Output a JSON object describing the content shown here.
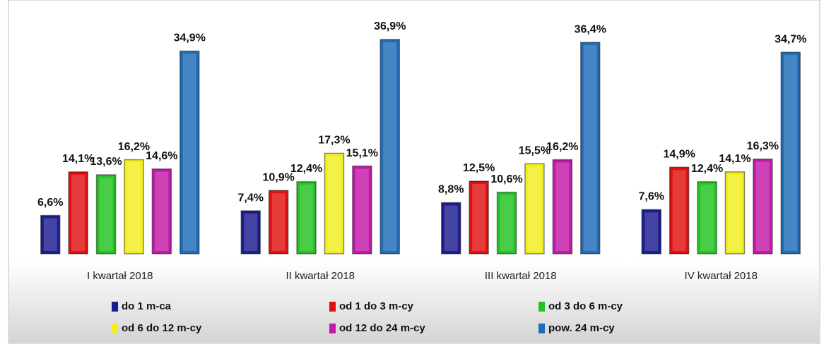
{
  "chart_data": {
    "type": "bar",
    "categories": [
      "I kwartał 2018",
      "II kwartał 2018",
      "III kwartał 2018",
      "IV kwartał 2018"
    ],
    "series": [
      {
        "name": "do 1 m-ca",
        "color": "#1c1c8f",
        "values": [
          6.6,
          7.4,
          8.8,
          7.6
        ],
        "value_labels": [
          "6,6%",
          "7,4%",
          "8,8%",
          "7,6%"
        ]
      },
      {
        "name": "od 1 do 3 m-cy",
        "color": "#e01010",
        "values": [
          14.1,
          10.9,
          12.5,
          14.9
        ],
        "value_labels": [
          "14,1%",
          "10,9%",
          "12,5%",
          "14,9%"
        ]
      },
      {
        "name": "od 3 do 6 m-cy",
        "color": "#22c322",
        "values": [
          13.6,
          12.4,
          10.6,
          12.4
        ],
        "value_labels": [
          "13,6%",
          "12,4%",
          "10,6%",
          "12,4%"
        ]
      },
      {
        "name": "od 6 do 12 m-cy",
        "color": "#f2ee1e",
        "values": [
          16.2,
          17.3,
          15.5,
          14.1
        ],
        "value_labels": [
          "16,2%",
          "17,3%",
          "15,5%",
          "14,1%"
        ]
      },
      {
        "name": "od 12 do 24 m-cy",
        "color": "#c21aa8",
        "values": [
          14.6,
          15.1,
          16.2,
          16.3
        ],
        "value_labels": [
          "14,6%",
          "15,1%",
          "16,2%",
          "16,3%"
        ]
      },
      {
        "name": "pow. 24 m-cy",
        "color": "#1f6cb8",
        "values": [
          34.9,
          36.9,
          36.4,
          34.7
        ],
        "value_labels": [
          "34,9%",
          "36,9%",
          "36,4%",
          "34,7%"
        ]
      }
    ]
  }
}
